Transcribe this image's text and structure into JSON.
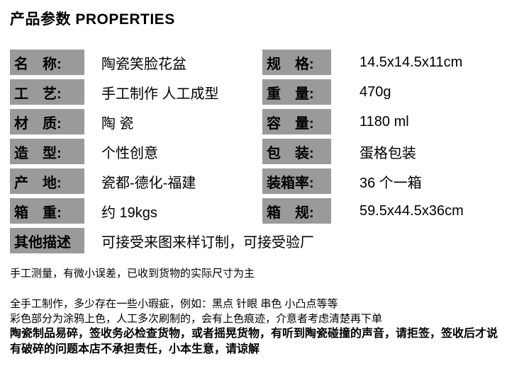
{
  "header": {
    "title": "产品参数 PROPERTIES"
  },
  "colors": {
    "label_background": "#9a9a9a",
    "text": "#000000",
    "page_background": "#ffffff"
  },
  "spec_table": {
    "left_column": [
      {
        "label": "名　称:",
        "value": "陶瓷笑脸花盆"
      },
      {
        "label": "工　艺:",
        "value": "手工制作 人工成型"
      },
      {
        "label": "材　质:",
        "value": "陶 瓷"
      },
      {
        "label": "造　型:",
        "value": "个性创意"
      },
      {
        "label": "产　地:",
        "value": "瓷都-德化-福建"
      },
      {
        "label": "箱　重:",
        "value": "约 19kgs"
      },
      {
        "label": "其他描述",
        "value": "可接受来图来样订制，可接受验厂"
      }
    ],
    "right_column": [
      {
        "label": "规　格:",
        "value": "14.5x14.5x11cm"
      },
      {
        "label": "重　量:",
        "value": "470g"
      },
      {
        "label": "容　量:",
        "value": "1180 ml"
      },
      {
        "label": "包　装:",
        "value": "蛋格包装"
      },
      {
        "label": "装箱率:",
        "value": "36 个一箱"
      },
      {
        "label": "箱　规:",
        "value": "59.5x44.5x36cm"
      }
    ]
  },
  "notes": [
    "手工测量，有微小误差，已收到货物的实际尺寸为主",
    "全手工制作，多少存在一些小瑕疵，例如：黑点 针眼 串色 小凸点等等",
    "彩色部分为涂鸦上色，人工多次刷制的，会有上色痕迹，介意者考虑清楚再下单",
    "陶瓷制品易碎，签收务必检查货物，或者摇晃货物，有听到陶瓷碰撞的声音，请拒签，签收后才说",
    "有破碎的问题本店不承担责任，小本生意，请谅解"
  ]
}
